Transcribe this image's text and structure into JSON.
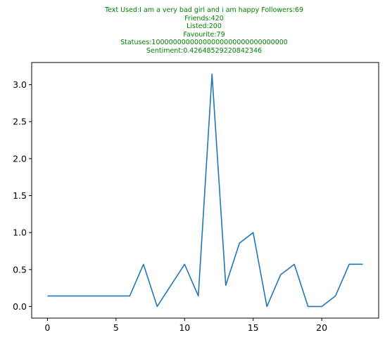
{
  "chart_data": {
    "type": "line",
    "title_lines": [
      "Text Used:I am a very bad girl and i am happy Followers:69",
      "Friends:420",
      "Listed:200",
      "Favourite:79",
      "Statuses:10000000000000000000000000000000",
      "Sentiment:0.42648529220842346"
    ],
    "title_color": "#008000",
    "series_color": "#1f77b4",
    "x": [
      0,
      1,
      2,
      3,
      4,
      5,
      6,
      7,
      8,
      9,
      10,
      11,
      12,
      13,
      14,
      15,
      16,
      17,
      18,
      19,
      20,
      21,
      22,
      23
    ],
    "values": [
      0.143,
      0.143,
      0.143,
      0.143,
      0.143,
      0.143,
      0.143,
      0.571,
      0.0,
      0.286,
      0.571,
      0.143,
      3.143,
      0.286,
      0.857,
      1.0,
      0.0,
      0.429,
      0.571,
      0.0,
      0.0,
      0.143,
      0.571,
      0.571
    ],
    "xlim": [
      -1.15,
      24.15
    ],
    "ylim": [
      -0.157,
      3.3
    ],
    "xticks": [
      0,
      5,
      10,
      15,
      20
    ],
    "xtick_labels": [
      "0",
      "5",
      "10",
      "15",
      "20"
    ],
    "yticks": [
      0.0,
      0.5,
      1.0,
      1.5,
      2.0,
      2.5,
      3.0
    ],
    "ytick_labels": [
      "0.0",
      "0.5",
      "1.0",
      "1.5",
      "2.0",
      "2.5",
      "3.0"
    ],
    "grid": false,
    "xlabel": "",
    "ylabel": ""
  }
}
